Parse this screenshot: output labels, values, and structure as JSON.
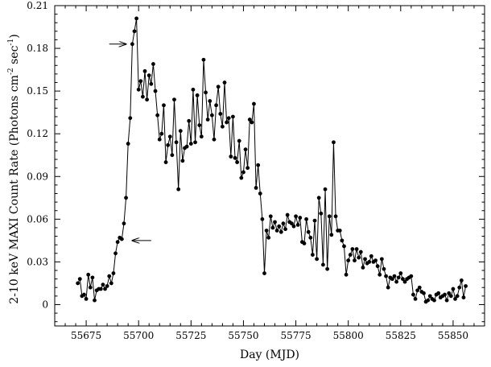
{
  "chart_data": {
    "type": "line",
    "title": "",
    "xlabel": "Day (MJD)",
    "ylabel": {
      "prefix": "2-10 keV MAXI Count Rate (Photons cm",
      "sup1": "-2",
      "middle": " sec",
      "sup2": "-1",
      "suffix": ")"
    },
    "xlim": [
      55660,
      55865
    ],
    "ylim": [
      -0.015,
      0.21
    ],
    "xticks": [
      55675,
      55700,
      55725,
      55750,
      55775,
      55800,
      55825,
      55850
    ],
    "xtick_labels": [
      "55675",
      "55700",
      "55725",
      "55750",
      "55775",
      "55800",
      "55825",
      "55850"
    ],
    "yticks": [
      0,
      0.03,
      0.06,
      0.09,
      0.12,
      0.15,
      0.18,
      0.21
    ],
    "ytick_labels": [
      "0",
      "0.03",
      "0.06",
      "0.09",
      "0.12",
      "0.15",
      "0.18",
      "0.21"
    ],
    "grid": false,
    "legend": "none",
    "series_color": "#000000",
    "annotations": [
      {
        "type": "arrow",
        "direction": "right",
        "x_from": 55686,
        "x_to": 55694,
        "y": 0.183
      },
      {
        "type": "arrow",
        "direction": "left",
        "x_from": 55706,
        "x_to": 55697,
        "y": 0.045
      }
    ],
    "x": [
      55671,
      55672,
      55673,
      55674,
      55675,
      55676,
      55677,
      55678,
      55679,
      55680,
      55681,
      55682,
      55683,
      55684,
      55685,
      55686,
      55687,
      55688,
      55689,
      55690,
      55691,
      55692,
      55693,
      55694,
      55695,
      55696,
      55697,
      55698,
      55699,
      55700,
      55701,
      55702,
      55703,
      55704,
      55705,
      55706,
      55707,
      55708,
      55709,
      55710,
      55711,
      55712,
      55713,
      55714,
      55715,
      55716,
      55717,
      55718,
      55719,
      55720,
      55721,
      55722,
      55723,
      55724,
      55725,
      55726,
      55727,
      55728,
      55729,
      55730,
      55731,
      55732,
      55733,
      55734,
      55735,
      55736,
      55737,
      55738,
      55739,
      55740,
      55741,
      55742,
      55743,
      55744,
      55745,
      55746,
      55747,
      55748,
      55749,
      55750,
      55751,
      55752,
      55753,
      55754,
      55755,
      55756,
      55757,
      55758,
      55759,
      55760,
      55761,
      55762,
      55763,
      55764,
      55765,
      55766,
      55767,
      55768,
      55769,
      55770,
      55771,
      55772,
      55773,
      55774,
      55775,
      55776,
      55777,
      55778,
      55779,
      55780,
      55781,
      55782,
      55783,
      55784,
      55785,
      55786,
      55787,
      55788,
      55789,
      55790,
      55791,
      55792,
      55793,
      55794,
      55795,
      55796,
      55797,
      55798,
      55799,
      55800,
      55801,
      55802,
      55803,
      55804,
      55805,
      55806,
      55807,
      55808,
      55809,
      55810,
      55811,
      55812,
      55813,
      55814,
      55815,
      55816,
      55817,
      55818,
      55819,
      55820,
      55821,
      55822,
      55823,
      55824,
      55825,
      55826,
      55827,
      55828,
      55829,
      55830,
      55831,
      55832,
      55833,
      55834,
      55835,
      55836,
      55837,
      55838,
      55839,
      55840,
      55841,
      55842,
      55843,
      55844,
      55845,
      55846,
      55847,
      55848,
      55849,
      55850,
      55851,
      55852,
      55853,
      55854,
      55855,
      55856
    ],
    "y": [
      0.015,
      0.018,
      0.006,
      0.007,
      0.004,
      0.021,
      0.012,
      0.019,
      0.003,
      0.01,
      0.011,
      0.011,
      0.014,
      0.011,
      0.013,
      0.02,
      0.015,
      0.022,
      0.036,
      0.044,
      0.047,
      0.046,
      0.057,
      0.075,
      0.113,
      0.131,
      0.183,
      0.192,
      0.201,
      0.151,
      0.157,
      0.146,
      0.164,
      0.144,
      0.161,
      0.155,
      0.169,
      0.15,
      0.133,
      0.116,
      0.12,
      0.14,
      0.1,
      0.112,
      0.118,
      0.105,
      0.144,
      0.114,
      0.081,
      0.122,
      0.101,
      0.11,
      0.111,
      0.129,
      0.113,
      0.151,
      0.114,
      0.147,
      0.126,
      0.118,
      0.172,
      0.149,
      0.13,
      0.143,
      0.133,
      0.116,
      0.14,
      0.153,
      0.134,
      0.125,
      0.156,
      0.128,
      0.131,
      0.104,
      0.132,
      0.103,
      0.1,
      0.115,
      0.089,
      0.093,
      0.109,
      0.096,
      0.13,
      0.128,
      0.141,
      0.082,
      0.098,
      0.078,
      0.06,
      0.022,
      0.052,
      0.047,
      0.062,
      0.054,
      0.058,
      0.052,
      0.055,
      0.051,
      0.057,
      0.053,
      0.063,
      0.058,
      0.057,
      0.055,
      0.062,
      0.056,
      0.061,
      0.044,
      0.043,
      0.06,
      0.051,
      0.047,
      0.035,
      0.059,
      0.032,
      0.075,
      0.064,
      0.028,
      0.081,
      0.025,
      0.062,
      0.049,
      0.114,
      0.062,
      0.052,
      0.052,
      0.045,
      0.041,
      0.021,
      0.031,
      0.035,
      0.039,
      0.031,
      0.039,
      0.033,
      0.037,
      0.026,
      0.032,
      0.029,
      0.03,
      0.034,
      0.03,
      0.031,
      0.027,
      0.021,
      0.032,
      0.025,
      0.02,
      0.012,
      0.019,
      0.018,
      0.02,
      0.016,
      0.019,
      0.022,
      0.018,
      0.016,
      0.018,
      0.019,
      0.02,
      0.007,
      0.004,
      0.01,
      0.012,
      0.009,
      0.008,
      0.002,
      0.003,
      0.006,
      0.004,
      0.003,
      0.007,
      0.008,
      0.005,
      0.006,
      0.007,
      0.003,
      0.008,
      0.006,
      0.011,
      0.004,
      0.006,
      0.012,
      0.017,
      0.005,
      0.013
    ]
  }
}
